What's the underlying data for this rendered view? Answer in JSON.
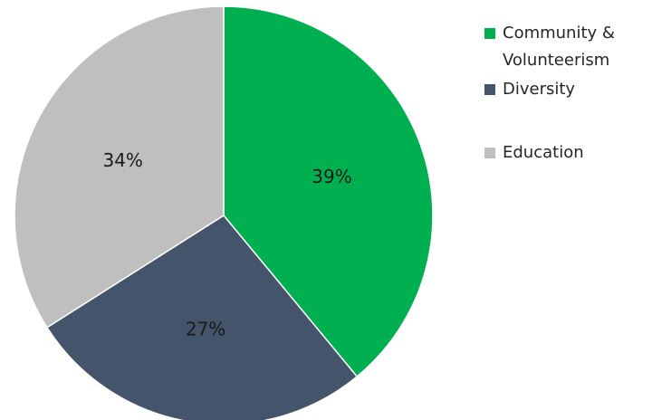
{
  "chart_data": {
    "type": "pie",
    "title": "",
    "categories": [
      "Community & Volunteerism",
      "Diversity",
      "Education"
    ],
    "values": [
      39,
      27,
      34
    ],
    "labels": [
      "39%",
      "27%",
      "34%"
    ],
    "colors": [
      "#00B050",
      "#44546A",
      "#BFBFBF"
    ],
    "start_angle": "12 o'clock",
    "direction": "clockwise",
    "legend_position": "right"
  }
}
